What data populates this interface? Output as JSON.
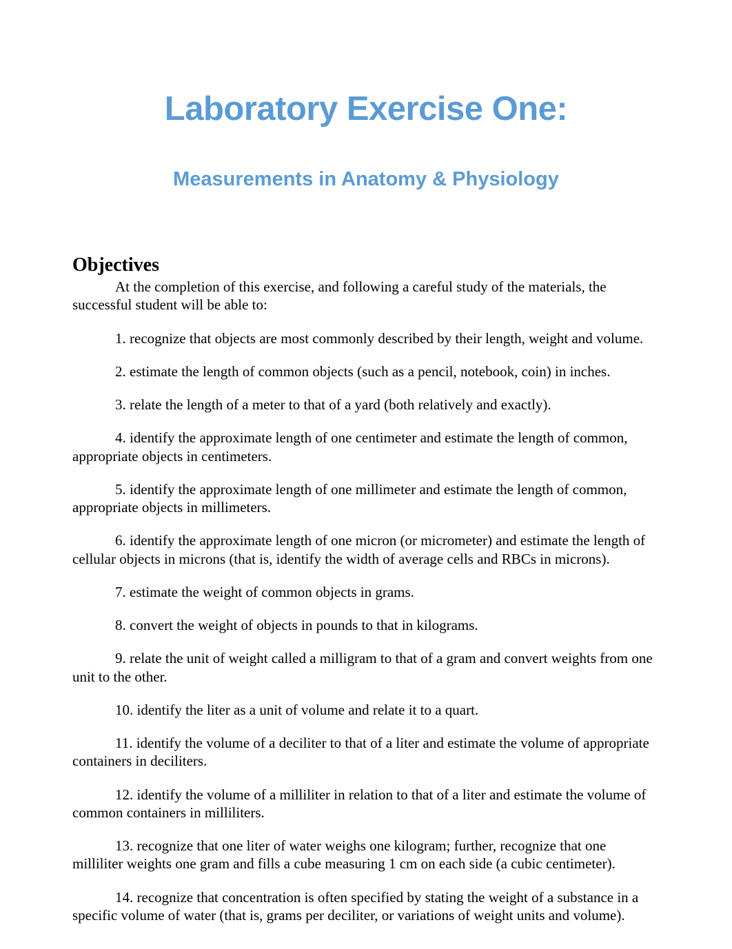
{
  "title": "Laboratory Exercise One:",
  "subtitle": "Measurements in Anatomy & Physiology",
  "heading": "Objectives",
  "intro": "At the completion of this exercise, and following a careful study of the materials, the successful student will be able to:",
  "objectives": [
    "1. recognize that objects are most commonly described by their length, weight and volume.",
    "2. estimate the length of common objects (such as a pencil, notebook, coin) in inches.",
    "3. relate the length of a meter to that of a yard (both relatively and exactly).",
    "4. identify the approximate length of one centimeter and estimate the length of common, appropriate objects in centimeters.",
    "5. identify the approximate length of one millimeter and estimate the length of common, appropriate objects in millimeters.",
    "6. identify the approximate length of one micron (or micrometer) and estimate the length of cellular objects in microns (that is, identify the width of average cells and RBCs in microns).",
    "7. estimate the weight of common objects in grams.",
    "8. convert the weight of objects in pounds to that in kilograms.",
    "9. relate the unit of weight called a milligram to that of a gram and convert weights from one unit to the other.",
    "10. identify the liter as a unit of volume and relate it to a quart.",
    "11. identify the volume of a deciliter to that of a liter and estimate the volume of appropriate containers in deciliters.",
    "12. identify the volume of a milliliter in relation to that of a liter and estimate the volume of common containers in milliliters.",
    "13. recognize that one liter of water weighs one kilogram; further, recognize that one milliliter weights one gram and fills a cube measuring 1 cm on each side (a cubic centimeter).",
    "14. recognize that concentration is often specified by stating the weight of a substance in a specific volume of water (that is, grams per deciliter, or variations of weight units and volume)."
  ],
  "colors": {
    "title_color": "#5b9bd5",
    "text_color": "#000000",
    "background": "#ffffff"
  },
  "typography": {
    "title_fontsize": 49,
    "subtitle_fontsize": 29,
    "heading_fontsize": 28,
    "body_fontsize": 21
  }
}
